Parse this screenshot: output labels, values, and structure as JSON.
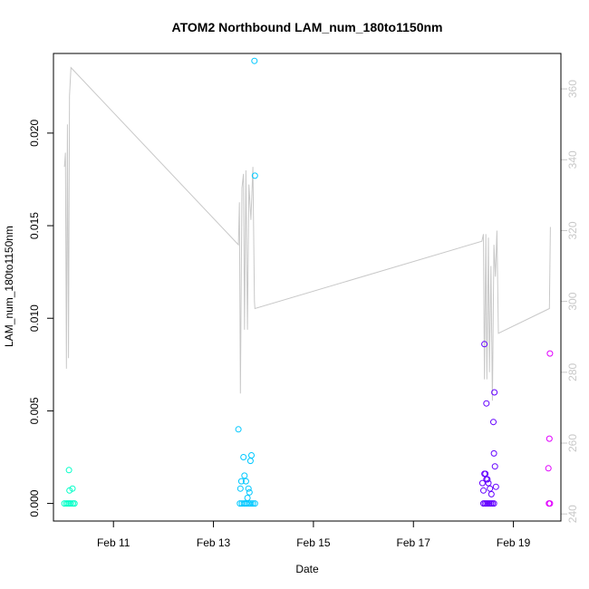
{
  "chart_data": {
    "type": "scatter",
    "title": "ATOM2 Northbound LAM_num_180to1150nm",
    "xlabel": "Date",
    "ylabel": "LAM_num_180to1150nm",
    "x_unit": "days (February)",
    "xlim": [
      9.8,
      19.95
    ],
    "ylim": [
      -0.00095,
      0.0243
    ],
    "x_ticks": [
      {
        "value": 11,
        "label": "Feb 11"
      },
      {
        "value": 13,
        "label": "Feb 13"
      },
      {
        "value": 15,
        "label": "Feb 15"
      },
      {
        "value": 17,
        "label": "Feb 17"
      },
      {
        "value": 19,
        "label": "Feb 19"
      }
    ],
    "y_ticks": [
      {
        "value": 0.0,
        "label": "0.000"
      },
      {
        "value": 0.005,
        "label": "0.005"
      },
      {
        "value": 0.01,
        "label": "0.010"
      },
      {
        "value": 0.015,
        "label": "0.015"
      },
      {
        "value": 0.02,
        "label": "0.020"
      }
    ],
    "y2lim": [
      238,
      370
    ],
    "y2_ticks": [
      {
        "value": 240,
        "label": "240"
      },
      {
        "value": 260,
        "label": "260"
      },
      {
        "value": 280,
        "label": "280"
      },
      {
        "value": 300,
        "label": "300"
      },
      {
        "value": 320,
        "label": "320"
      },
      {
        "value": 340,
        "label": "340"
      },
      {
        "value": 360,
        "label": "360"
      }
    ],
    "grid": false,
    "points": [
      {
        "x": 10.02,
        "y": 0.0,
        "color": "#00FFC8"
      },
      {
        "x": 10.06,
        "y": 0.0,
        "color": "#00FFC8"
      },
      {
        "x": 10.09,
        "y": 0.0,
        "color": "#00FFC8"
      },
      {
        "x": 10.12,
        "y": 0.0,
        "color": "#00FFC8"
      },
      {
        "x": 10.15,
        "y": 0.0,
        "color": "#00FFC8"
      },
      {
        "x": 10.19,
        "y": 0.0,
        "color": "#00FFC8"
      },
      {
        "x": 10.22,
        "y": 0.0,
        "color": "#00FFC8"
      },
      {
        "x": 10.11,
        "y": 0.0018,
        "color": "#00FFC8"
      },
      {
        "x": 10.12,
        "y": 0.0007,
        "color": "#00FFC8"
      },
      {
        "x": 10.18,
        "y": 0.0008,
        "color": "#00FFC8"
      },
      {
        "x": 13.53,
        "y": 0.0,
        "color": "#00C8FF"
      },
      {
        "x": 13.57,
        "y": 0.0,
        "color": "#00C8FF"
      },
      {
        "x": 13.61,
        "y": 0.0,
        "color": "#00C8FF"
      },
      {
        "x": 13.64,
        "y": 0.0,
        "color": "#00C8FF"
      },
      {
        "x": 13.67,
        "y": 0.0,
        "color": "#00C8FF"
      },
      {
        "x": 13.71,
        "y": 0.0,
        "color": "#00C8FF"
      },
      {
        "x": 13.75,
        "y": 0.0,
        "color": "#00C8FF"
      },
      {
        "x": 13.79,
        "y": 0.0,
        "color": "#00C8FF"
      },
      {
        "x": 13.83,
        "y": 0.0,
        "color": "#00C8FF"
      },
      {
        "x": 13.5,
        "y": 0.004,
        "color": "#00C8FF"
      },
      {
        "x": 13.54,
        "y": 0.0008,
        "color": "#00C8FF"
      },
      {
        "x": 13.56,
        "y": 0.0012,
        "color": "#00C8FF"
      },
      {
        "x": 13.6,
        "y": 0.0025,
        "color": "#00C8FF"
      },
      {
        "x": 13.62,
        "y": 0.0015,
        "color": "#00C8FF"
      },
      {
        "x": 13.65,
        "y": 0.0012,
        "color": "#00C8FF"
      },
      {
        "x": 13.68,
        "y": 0.0003,
        "color": "#00C8FF"
      },
      {
        "x": 13.7,
        "y": 0.0008,
        "color": "#00C8FF"
      },
      {
        "x": 13.72,
        "y": 0.0006,
        "color": "#00C8FF"
      },
      {
        "x": 13.74,
        "y": 0.0023,
        "color": "#00C8FF"
      },
      {
        "x": 13.76,
        "y": 0.0026,
        "color": "#00C8FF"
      },
      {
        "x": 13.82,
        "y": 0.0239,
        "color": "#00C8FF"
      },
      {
        "x": 13.83,
        "y": 0.0177,
        "color": "#00C8FF"
      },
      {
        "x": 18.4,
        "y": 0.0,
        "color": "#6400FF"
      },
      {
        "x": 18.43,
        "y": 0.0,
        "color": "#6400FF"
      },
      {
        "x": 18.46,
        "y": 0.0,
        "color": "#6400FF"
      },
      {
        "x": 18.49,
        "y": 0.0,
        "color": "#6400FF"
      },
      {
        "x": 18.52,
        "y": 0.0,
        "color": "#6400FF"
      },
      {
        "x": 18.55,
        "y": 0.0,
        "color": "#6400FF"
      },
      {
        "x": 18.58,
        "y": 0.0,
        "color": "#6400FF"
      },
      {
        "x": 18.61,
        "y": 0.0,
        "color": "#6400FF"
      },
      {
        "x": 18.38,
        "y": 0.0011,
        "color": "#6400FF"
      },
      {
        "x": 18.4,
        "y": 0.0007,
        "color": "#6400FF"
      },
      {
        "x": 18.42,
        "y": 0.0016,
        "color": "#6400FF"
      },
      {
        "x": 18.44,
        "y": 0.0016,
        "color": "#6400FF"
      },
      {
        "x": 18.46,
        "y": 0.0013,
        "color": "#6400FF"
      },
      {
        "x": 18.48,
        "y": 0.0013,
        "color": "#6400FF"
      },
      {
        "x": 18.5,
        "y": 0.0011,
        "color": "#6400FF"
      },
      {
        "x": 18.53,
        "y": 0.0008,
        "color": "#6400FF"
      },
      {
        "x": 18.56,
        "y": 0.0005,
        "color": "#6400FF"
      },
      {
        "x": 18.42,
        "y": 0.0086,
        "color": "#6400FF"
      },
      {
        "x": 18.46,
        "y": 0.0054,
        "color": "#6400FF"
      },
      {
        "x": 18.62,
        "y": 0.006,
        "color": "#6400FF"
      },
      {
        "x": 18.6,
        "y": 0.0044,
        "color": "#6400FF"
      },
      {
        "x": 18.61,
        "y": 0.0027,
        "color": "#6400FF"
      },
      {
        "x": 18.63,
        "y": 0.002,
        "color": "#6400FF"
      },
      {
        "x": 18.65,
        "y": 0.0009,
        "color": "#6400FF"
      },
      {
        "x": 19.71,
        "y": 0.0,
        "color": "#E100FF"
      },
      {
        "x": 19.73,
        "y": 0.0,
        "color": "#E100FF"
      },
      {
        "x": 19.7,
        "y": 0.0019,
        "color": "#E100FF"
      },
      {
        "x": 19.72,
        "y": 0.0035,
        "color": "#E100FF"
      },
      {
        "x": 19.73,
        "y": 0.0081,
        "color": "#E100FF"
      }
    ],
    "line": {
      "color": "#c8c8c8",
      "axis": "right",
      "points": [
        [
          10.02,
          338
        ],
        [
          10.04,
          342
        ],
        [
          10.06,
          281
        ],
        [
          10.08,
          350
        ],
        [
          10.1,
          284
        ],
        [
          10.12,
          358
        ],
        [
          10.15,
          366
        ],
        [
          13.5,
          316
        ],
        [
          13.52,
          328
        ],
        [
          13.54,
          274
        ],
        [
          13.57,
          332
        ],
        [
          13.6,
          336
        ],
        [
          13.62,
          292
        ],
        [
          13.65,
          337
        ],
        [
          13.68,
          292
        ],
        [
          13.71,
          333
        ],
        [
          13.75,
          323
        ],
        [
          13.79,
          338
        ],
        [
          13.82,
          300
        ],
        [
          13.83,
          298
        ],
        [
          18.37,
          317
        ],
        [
          18.4,
          319
        ],
        [
          18.42,
          278
        ],
        [
          18.45,
          319
        ],
        [
          18.47,
          278
        ],
        [
          18.5,
          318
        ],
        [
          18.52,
          280
        ],
        [
          18.55,
          310
        ],
        [
          18.58,
          272
        ],
        [
          18.61,
          316
        ],
        [
          18.64,
          307
        ],
        [
          18.67,
          320
        ],
        [
          18.7,
          291
        ],
        [
          19.72,
          298
        ],
        [
          19.74,
          321
        ]
      ]
    }
  }
}
